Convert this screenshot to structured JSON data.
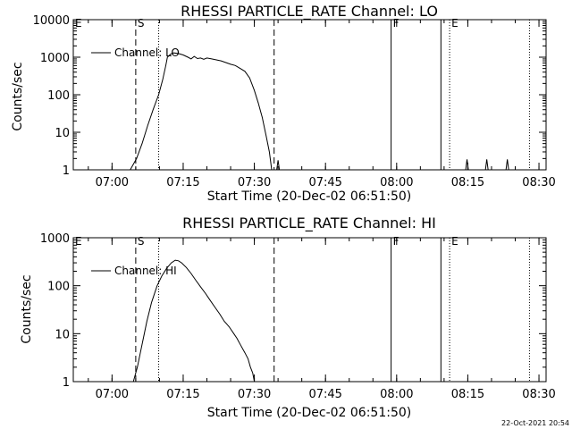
{
  "footer": {
    "timestamp": "22-Oct-2021 20:54"
  },
  "chart_data": [
    {
      "type": "line",
      "title": "RHESSI PARTICLE_RATE Channel: LO",
      "xlabel": "Start Time (20-Dec-02 06:51:50)",
      "ylabel": "Counts/sec",
      "yscale": "log",
      "ylim": [
        1,
        10000
      ],
      "xlim": [
        "06:51:50",
        "08:31:30"
      ],
      "x_ticks": [
        "07:00",
        "07:15",
        "07:30",
        "07:45",
        "08:00",
        "08:15",
        "08:30"
      ],
      "y_ticks": [
        "1",
        "10",
        "100",
        "1000",
        "10000"
      ],
      "legend": {
        "position": "top-left",
        "label": "Channel: LO"
      },
      "markers": [
        {
          "label": "E",
          "time": "06:51:50",
          "style": "solid"
        },
        {
          "label": "S",
          "time": "07:05:00",
          "style": "dashed"
        },
        {
          "label": "",
          "time": "07:09:50",
          "style": "dotted"
        },
        {
          "label": "",
          "time": "07:34:10",
          "style": "dashed"
        },
        {
          "label": "F",
          "time": "07:58:50",
          "style": "solid"
        },
        {
          "label": "",
          "time": "08:09:20",
          "style": "solid"
        },
        {
          "label": "E",
          "time": "08:11:10",
          "style": "dotted"
        },
        {
          "label": "",
          "time": "08:28:00",
          "style": "dotted"
        }
      ],
      "series": [
        {
          "name": "Channel: LO",
          "points": [
            [
              "07:03:50",
              1
            ],
            [
              "07:05:10",
              2
            ],
            [
              "07:06:20",
              5
            ],
            [
              "07:07:30",
              15
            ],
            [
              "07:08:40",
              40
            ],
            [
              "07:09:50",
              100
            ],
            [
              "07:10:40",
              250
            ],
            [
              "07:11:20",
              600
            ],
            [
              "07:11:40",
              1000
            ],
            [
              "07:12:20",
              1200
            ],
            [
              "07:13:00",
              1300
            ],
            [
              "07:14:00",
              1250
            ],
            [
              "07:15:00",
              1150
            ],
            [
              "07:16:00",
              1000
            ],
            [
              "07:16:40",
              900
            ],
            [
              "07:17:20",
              1050
            ],
            [
              "07:18:00",
              920
            ],
            [
              "07:18:40",
              950
            ],
            [
              "07:19:20",
              880
            ],
            [
              "07:20:00",
              950
            ],
            [
              "07:21:00",
              900
            ],
            [
              "07:22:00",
              850
            ],
            [
              "07:23:00",
              800
            ],
            [
              "07:24:00",
              720
            ],
            [
              "07:25:00",
              650
            ],
            [
              "07:26:00",
              600
            ],
            [
              "07:27:00",
              500
            ],
            [
              "07:28:00",
              420
            ],
            [
              "07:29:00",
              280
            ],
            [
              "07:30:00",
              130
            ],
            [
              "07:30:50",
              60
            ],
            [
              "07:31:40",
              25
            ],
            [
              "07:32:30",
              8
            ],
            [
              "07:33:10",
              3
            ],
            [
              "07:33:40",
              1
            ]
          ],
          "spikes": [
            {
              "time": "07:35:00",
              "value": 1.8
            },
            {
              "time": "08:14:50",
              "value": 1.9
            },
            {
              "time": "08:19:00",
              "value": 1.9
            },
            {
              "time": "08:23:20",
              "value": 1.9
            }
          ]
        }
      ]
    },
    {
      "type": "line",
      "title": "RHESSI PARTICLE_RATE Channel: HI",
      "xlabel": "Start Time (20-Dec-02 06:51:50)",
      "ylabel": "Counts/sec",
      "yscale": "log",
      "ylim": [
        1,
        1000
      ],
      "xlim": [
        "06:51:50",
        "08:31:30"
      ],
      "x_ticks": [
        "07:00",
        "07:15",
        "07:30",
        "07:45",
        "08:00",
        "08:15",
        "08:30"
      ],
      "y_ticks": [
        "1",
        "10",
        "100",
        "1000"
      ],
      "legend": {
        "position": "top-left",
        "label": "Channel: HI"
      },
      "markers": [
        {
          "label": "E",
          "time": "06:51:50",
          "style": "solid"
        },
        {
          "label": "S",
          "time": "07:05:00",
          "style": "dashed"
        },
        {
          "label": "",
          "time": "07:09:50",
          "style": "dotted"
        },
        {
          "label": "",
          "time": "07:34:10",
          "style": "dashed"
        },
        {
          "label": "F",
          "time": "07:58:50",
          "style": "solid"
        },
        {
          "label": "",
          "time": "08:09:20",
          "style": "solid"
        },
        {
          "label": "E",
          "time": "08:11:10",
          "style": "dotted"
        },
        {
          "label": "",
          "time": "08:28:00",
          "style": "dotted"
        }
      ],
      "series": [
        {
          "name": "Channel: HI",
          "points": [
            [
              "07:04:30",
              1
            ],
            [
              "07:05:20",
              2
            ],
            [
              "07:06:20",
              6
            ],
            [
              "07:07:20",
              18
            ],
            [
              "07:08:20",
              45
            ],
            [
              "07:09:30",
              100
            ],
            [
              "07:10:30",
              160
            ],
            [
              "07:11:30",
              230
            ],
            [
              "07:12:30",
              300
            ],
            [
              "07:13:20",
              340
            ],
            [
              "07:14:00",
              330
            ],
            [
              "07:14:40",
              300
            ],
            [
              "07:15:40",
              240
            ],
            [
              "07:16:40",
              180
            ],
            [
              "07:17:40",
              130
            ],
            [
              "07:18:40",
              95
            ],
            [
              "07:19:40",
              70
            ],
            [
              "07:20:40",
              50
            ],
            [
              "07:21:40",
              36
            ],
            [
              "07:22:40",
              26
            ],
            [
              "07:23:40",
              18
            ],
            [
              "07:24:40",
              14
            ],
            [
              "07:25:40",
              10
            ],
            [
              "07:26:20",
              8
            ],
            [
              "07:27:00",
              6
            ],
            [
              "07:28:00",
              4
            ],
            [
              "07:28:40",
              3
            ],
            [
              "07:29:10",
              2
            ],
            [
              "07:29:40",
              1.5
            ],
            [
              "07:30:00",
              1
            ]
          ],
          "spikes": []
        }
      ]
    }
  ]
}
